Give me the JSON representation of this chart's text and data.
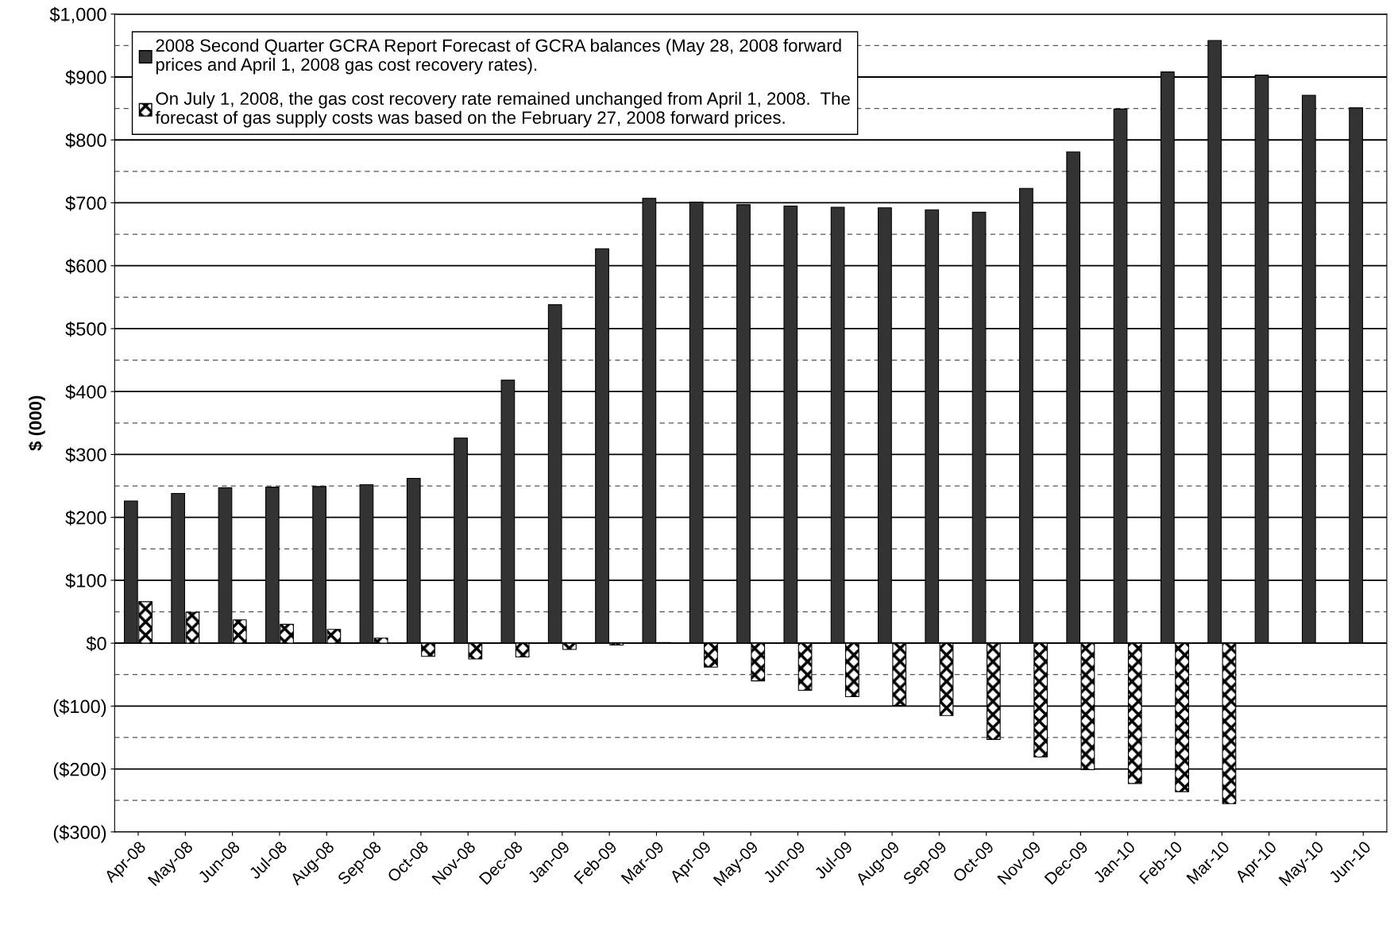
{
  "chart_data": {
    "type": "bar",
    "ylabel": "$ (000)",
    "categories": [
      "Apr-08",
      "May-08",
      "Jun-08",
      "Jul-08",
      "Aug-08",
      "Sep-08",
      "Oct-08",
      "Nov-08",
      "Dec-08",
      "Jan-09",
      "Feb-09",
      "Mar-09",
      "Apr-09",
      "May-09",
      "Jun-09",
      "Jul-09",
      "Aug-09",
      "Sep-09",
      "Oct-09",
      "Nov-09",
      "Dec-09",
      "Jan-10",
      "Feb-10",
      "Mar-10",
      "Apr-10",
      "May-10",
      "Jun-10"
    ],
    "series": [
      {
        "name": "2008 Second Quarter GCRA Report Forecast of GCRA balances (May 28, 2008 forward\nprices and April 1, 2008 gas cost recovery rates).",
        "color": "#333333",
        "values": [
          226,
          238,
          247,
          248,
          249,
          252,
          262,
          326,
          418,
          538,
          627,
          707,
          701,
          697,
          695,
          693,
          692,
          689,
          685,
          723,
          781,
          849,
          908,
          958,
          903,
          871,
          851
        ]
      },
      {
        "name": "On July 1, 2008, the gas cost recovery rate remained unchanged from April 1, 2008.  The\nforecast of gas supply costs was based on the February 27, 2008 forward prices.",
        "color": "#000000",
        "values": [
          66,
          49,
          37,
          30,
          22,
          8,
          -21,
          -25,
          -22,
          -10,
          -3,
          1,
          -38,
          -60,
          -75,
          -85,
          -99,
          -115,
          -153,
          -181,
          -201,
          -223,
          -236,
          -255,
          null,
          null,
          null
        ]
      }
    ],
    "ylim": [
      -300,
      1000
    ],
    "yticks": [
      {
        "value": -300,
        "label": "($300)"
      },
      {
        "value": -250,
        "label": null
      },
      {
        "value": -200,
        "label": "($200)"
      },
      {
        "value": -150,
        "label": null
      },
      {
        "value": -100,
        "label": "($100)"
      },
      {
        "value": -50,
        "label": null
      },
      {
        "value": 0,
        "label": "$0"
      },
      {
        "value": 50,
        "label": null
      },
      {
        "value": 100,
        "label": "$100"
      },
      {
        "value": 150,
        "label": null
      },
      {
        "value": 200,
        "label": "$200"
      },
      {
        "value": 250,
        "label": null
      },
      {
        "value": 300,
        "label": "$300"
      },
      {
        "value": 350,
        "label": null
      },
      {
        "value": 400,
        "label": "$400"
      },
      {
        "value": 450,
        "label": null
      },
      {
        "value": 500,
        "label": "$500"
      },
      {
        "value": 550,
        "label": null
      },
      {
        "value": 600,
        "label": "$600"
      },
      {
        "value": 650,
        "label": null
      },
      {
        "value": 700,
        "label": "$700"
      },
      {
        "value": 750,
        "label": null
      },
      {
        "value": 800,
        "label": "$800"
      },
      {
        "value": 850,
        "label": null
      },
      {
        "value": 900,
        "label": "$900"
      },
      {
        "value": 950,
        "label": null
      },
      {
        "value": 1000,
        "label": "$1,000"
      }
    ],
    "grid": "y",
    "legend": "top left"
  }
}
